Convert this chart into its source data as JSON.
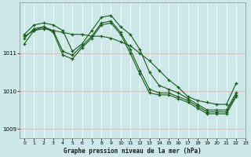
{
  "title": "Graphe pression niveau de la mer (hPa)",
  "bg_color": "#cce8e8",
  "line_color": "#1a5c1a",
  "xlim": [
    -0.5,
    23
  ],
  "ylim": [
    1008.75,
    1012.35
  ],
  "yticks": [
    1009,
    1010,
    1011
  ],
  "xticks": [
    0,
    1,
    2,
    3,
    4,
    5,
    6,
    7,
    8,
    9,
    10,
    11,
    12,
    13,
    14,
    15,
    16,
    17,
    18,
    19,
    20,
    21,
    22,
    23
  ],
  "series": [
    {
      "x": [
        0,
        1,
        2,
        3,
        4,
        5,
        6,
        7,
        8,
        9,
        10,
        11,
        12,
        13,
        14,
        15,
        16,
        17,
        18,
        19,
        20,
        21,
        22,
        23
      ],
      "y": [
        1011.5,
        1011.75,
        1011.8,
        1011.75,
        1011.6,
        1011.05,
        1011.25,
        1011.6,
        1011.95,
        1012.0,
        1011.7,
        1011.5,
        1011.1,
        1010.5,
        1010.15,
        1010.05,
        1009.95,
        1009.8,
        1009.65,
        1009.5,
        1009.5,
        1009.5,
        1009.95,
        null
      ]
    },
    {
      "x": [
        0,
        1,
        2,
        3,
        4,
        5,
        6,
        7,
        8,
        9,
        10,
        11,
        12,
        13,
        14,
        15,
        16,
        17,
        18,
        19,
        20,
        21,
        22,
        23
      ],
      "y": [
        1011.45,
        1011.6,
        1011.65,
        1011.6,
        1011.55,
        1011.5,
        1011.5,
        1011.45,
        1011.45,
        1011.4,
        1011.3,
        1011.2,
        1011.0,
        1010.8,
        1010.55,
        1010.3,
        1010.1,
        1009.85,
        1009.75,
        1009.7,
        1009.65,
        1009.65,
        1010.2,
        null
      ]
    },
    {
      "x": [
        0,
        1,
        2,
        3,
        4,
        5,
        6,
        7,
        8,
        9,
        10,
        11,
        12,
        13,
        14,
        15,
        16,
        17,
        18,
        19,
        20,
        21,
        22,
        23
      ],
      "y": [
        1011.4,
        1011.65,
        1011.7,
        1011.6,
        1011.05,
        1010.95,
        1011.2,
        1011.45,
        1011.8,
        1011.85,
        1011.55,
        1011.1,
        1010.55,
        1010.05,
        1009.95,
        1009.95,
        1009.85,
        1009.75,
        1009.6,
        1009.45,
        1009.45,
        1009.45,
        1009.9,
        null
      ]
    },
    {
      "x": [
        0,
        1,
        2,
        3,
        4,
        5,
        6,
        7,
        8,
        9,
        10,
        11,
        12,
        13,
        14,
        15,
        16,
        17,
        18,
        19,
        20,
        21,
        22,
        23
      ],
      "y": [
        1011.25,
        1011.6,
        1011.7,
        1011.55,
        1010.95,
        1010.85,
        1011.15,
        1011.4,
        1011.75,
        1011.8,
        1011.5,
        1011.0,
        1010.45,
        1009.95,
        1009.9,
        1009.9,
        1009.8,
        1009.7,
        1009.55,
        1009.4,
        1009.4,
        1009.4,
        1009.85,
        null
      ]
    }
  ]
}
